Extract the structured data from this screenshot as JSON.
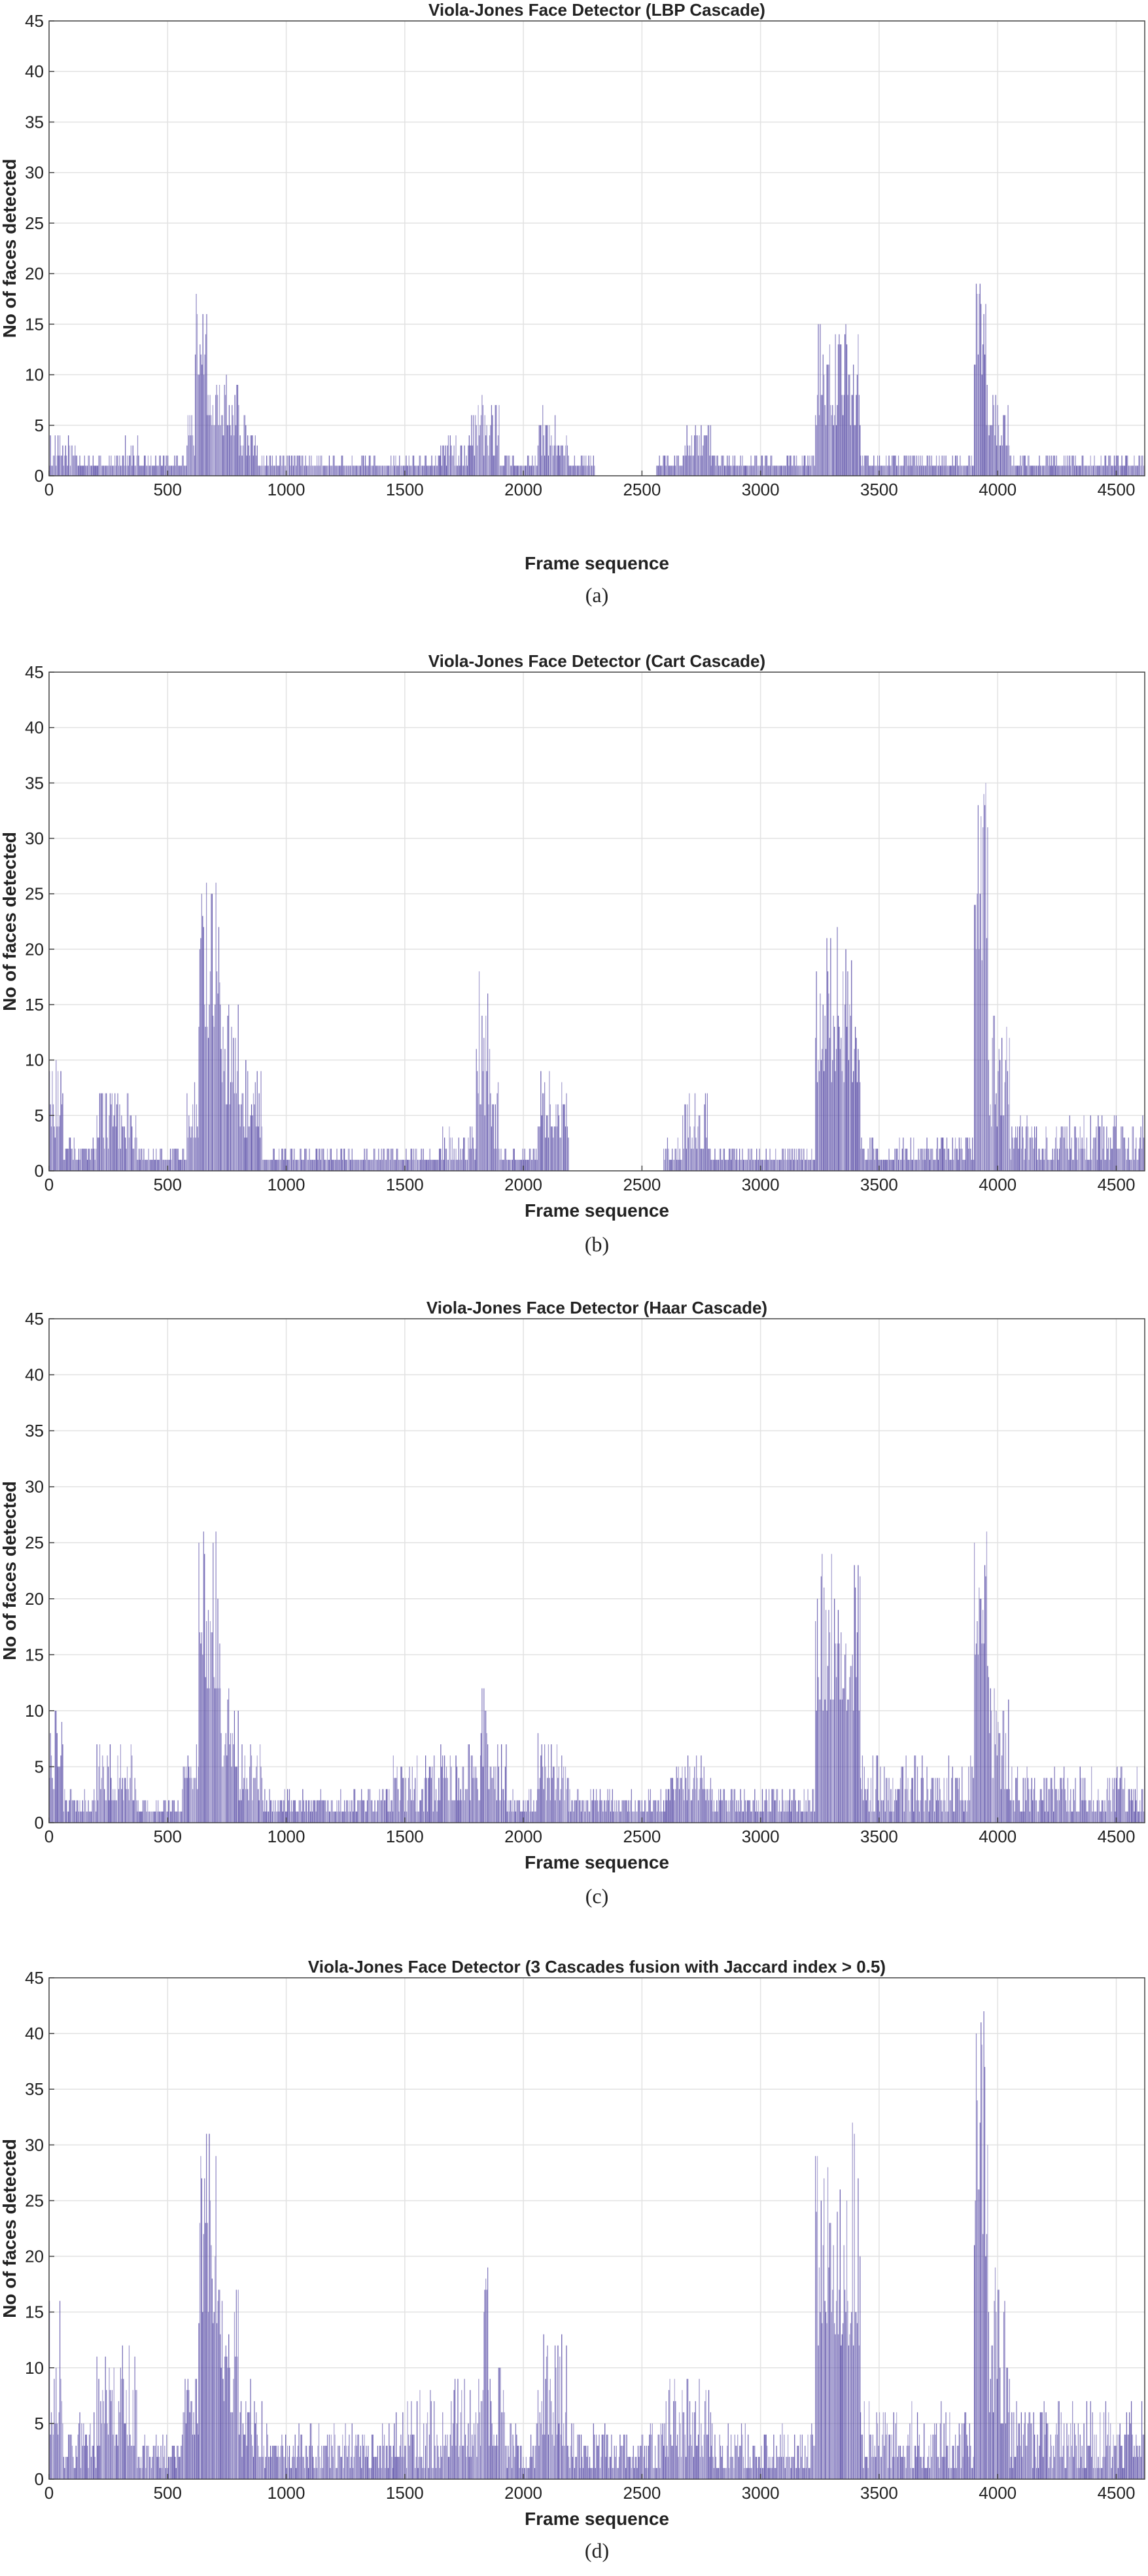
{
  "chart_data": [
    {
      "type": "bar",
      "panel": "(a)",
      "title": "Viola-Jones Face Detector (LBP Cascade)",
      "xlabel": "Frame sequence",
      "ylabel": "No of faces detected",
      "xlim": [
        0,
        4620
      ],
      "ylim": [
        0,
        45
      ],
      "xticks": [
        0,
        500,
        1000,
        1500,
        2000,
        2500,
        3000,
        3500,
        4000,
        4500
      ],
      "yticks": [
        0,
        5,
        10,
        15,
        20,
        25,
        30,
        35,
        40,
        45
      ],
      "grid": true,
      "bar_color": "#5b4fa8",
      "segments": [
        {
          "x": [
            0,
            120
          ],
          "peak": 4,
          "base": 1
        },
        {
          "x": [
            120,
            300
          ],
          "peak": 2,
          "base": 1
        },
        {
          "x": [
            300,
            380
          ],
          "peak": 4,
          "base": 1
        },
        {
          "x": [
            380,
            580
          ],
          "peak": 2,
          "base": 1
        },
        {
          "x": [
            580,
            615
          ],
          "peak": 6,
          "base": 2
        },
        {
          "x": [
            615,
            665
          ],
          "peak": 18,
          "base": 10
        },
        {
          "x": [
            665,
            730
          ],
          "peak": 9,
          "base": 5
        },
        {
          "x": [
            730,
            800
          ],
          "peak": 10,
          "base": 4
        },
        {
          "x": [
            800,
            880
          ],
          "peak": 6,
          "base": 2
        },
        {
          "x": [
            880,
            1650
          ],
          "peak": 2,
          "base": 1
        },
        {
          "x": [
            1650,
            1780
          ],
          "peak": 4,
          "base": 1
        },
        {
          "x": [
            1780,
            1900
          ],
          "peak": 8,
          "base": 2
        },
        {
          "x": [
            1900,
            2060
          ],
          "peak": 2,
          "base": 1
        },
        {
          "x": [
            2060,
            2190
          ],
          "peak": 7,
          "base": 2
        },
        {
          "x": [
            2190,
            2300
          ],
          "peak": 2,
          "base": 1
        },
        {
          "x": [
            2560,
            2680
          ],
          "peak": 2,
          "base": 1
        },
        {
          "x": [
            2680,
            2790
          ],
          "peak": 5,
          "base": 2
        },
        {
          "x": [
            2790,
            3230
          ],
          "peak": 2,
          "base": 1
        },
        {
          "x": [
            3230,
            3420
          ],
          "peak": 16,
          "base": 5
        },
        {
          "x": [
            3420,
            3900
          ],
          "peak": 2,
          "base": 1
        },
        {
          "x": [
            3900,
            3950
          ],
          "peak": 19,
          "base": 10
        },
        {
          "x": [
            3950,
            4050
          ],
          "peak": 10,
          "base": 3
        },
        {
          "x": [
            4050,
            4620
          ],
          "peak": 2,
          "base": 1
        }
      ],
      "caption": "(a)"
    },
    {
      "type": "bar",
      "panel": "(b)",
      "title": "Viola-Jones Face Detector (Cart Cascade)",
      "xlabel": "Frame sequence",
      "ylabel": "No of faces detected",
      "xlim": [
        0,
        4620
      ],
      "ylim": [
        0,
        45
      ],
      "xticks": [
        0,
        500,
        1000,
        1500,
        2000,
        2500,
        3000,
        3500,
        4000,
        4500
      ],
      "yticks": [
        0,
        5,
        10,
        15,
        20,
        25,
        30,
        35,
        40,
        45
      ],
      "grid": true,
      "bar_color": "#5b4fa8",
      "segments": [
        {
          "x": [
            0,
            60
          ],
          "peak": 10,
          "base": 3
        },
        {
          "x": [
            60,
            200
          ],
          "peak": 3,
          "base": 1
        },
        {
          "x": [
            200,
            370
          ],
          "peak": 8,
          "base": 2
        },
        {
          "x": [
            370,
            580
          ],
          "peak": 2,
          "base": 1
        },
        {
          "x": [
            580,
            630
          ],
          "peak": 8,
          "base": 3
        },
        {
          "x": [
            630,
            720
          ],
          "peak": 27,
          "base": 12
        },
        {
          "x": [
            720,
            800
          ],
          "peak": 17,
          "base": 6
        },
        {
          "x": [
            800,
            900
          ],
          "peak": 10,
          "base": 3
        },
        {
          "x": [
            900,
            1650
          ],
          "peak": 2,
          "base": 1
        },
        {
          "x": [
            1650,
            1800
          ],
          "peak": 4,
          "base": 1
        },
        {
          "x": [
            1800,
            1860
          ],
          "peak": 18,
          "base": 5
        },
        {
          "x": [
            1860,
            1900
          ],
          "peak": 9,
          "base": 2
        },
        {
          "x": [
            1900,
            2060
          ],
          "peak": 2,
          "base": 1
        },
        {
          "x": [
            2060,
            2190
          ],
          "peak": 9,
          "base": 3
        },
        {
          "x": [
            2590,
            2670
          ],
          "peak": 3,
          "base": 1
        },
        {
          "x": [
            2670,
            2790
          ],
          "peak": 7,
          "base": 2
        },
        {
          "x": [
            2790,
            3230
          ],
          "peak": 2,
          "base": 1
        },
        {
          "x": [
            3230,
            3420
          ],
          "peak": 22,
          "base": 8
        },
        {
          "x": [
            3420,
            3900
          ],
          "peak": 3,
          "base": 1
        },
        {
          "x": [
            3900,
            3960
          ],
          "peak": 37,
          "base": 18
        },
        {
          "x": [
            3960,
            4050
          ],
          "peak": 15,
          "base": 4
        },
        {
          "x": [
            4050,
            4620
          ],
          "peak": 5,
          "base": 1
        }
      ],
      "caption": "(b)"
    },
    {
      "type": "bar",
      "panel": "(c)",
      "title": "Viola-Jones Face Detector (Haar Cascade)",
      "xlabel": "Frame sequence",
      "ylabel": "No of faces detected",
      "xlim": [
        0,
        4620
      ],
      "ylim": [
        0,
        45
      ],
      "xticks": [
        0,
        500,
        1000,
        1500,
        2000,
        2500,
        3000,
        3500,
        4000,
        4500
      ],
      "yticks": [
        0,
        5,
        10,
        15,
        20,
        25,
        30,
        35,
        40,
        45
      ],
      "grid": true,
      "bar_color": "#5b4fa8",
      "segments": [
        {
          "x": [
            0,
            60
          ],
          "peak": 10,
          "base": 3
        },
        {
          "x": [
            60,
            200
          ],
          "peak": 3,
          "base": 1
        },
        {
          "x": [
            200,
            370
          ],
          "peak": 8,
          "base": 2
        },
        {
          "x": [
            370,
            560
          ],
          "peak": 2,
          "base": 1
        },
        {
          "x": [
            560,
            630
          ],
          "peak": 7,
          "base": 3
        },
        {
          "x": [
            630,
            720
          ],
          "peak": 26,
          "base": 12
        },
        {
          "x": [
            720,
            800
          ],
          "peak": 12,
          "base": 5
        },
        {
          "x": [
            800,
            900
          ],
          "peak": 7,
          "base": 2
        },
        {
          "x": [
            900,
            1450
          ],
          "peak": 3,
          "base": 1
        },
        {
          "x": [
            1450,
            1650
          ],
          "peak": 6,
          "base": 1
        },
        {
          "x": [
            1650,
            1820
          ],
          "peak": 7,
          "base": 2
        },
        {
          "x": [
            1820,
            1850
          ],
          "peak": 13,
          "base": 5
        },
        {
          "x": [
            1850,
            1930
          ],
          "peak": 8,
          "base": 2
        },
        {
          "x": [
            1930,
            2060
          ],
          "peak": 3,
          "base": 1
        },
        {
          "x": [
            2060,
            2190
          ],
          "peak": 8,
          "base": 2
        },
        {
          "x": [
            2190,
            2600
          ],
          "peak": 3,
          "base": 1
        },
        {
          "x": [
            2600,
            2790
          ],
          "peak": 6,
          "base": 2
        },
        {
          "x": [
            2790,
            3230
          ],
          "peak": 3,
          "base": 1
        },
        {
          "x": [
            3230,
            3420
          ],
          "peak": 26,
          "base": 10
        },
        {
          "x": [
            3420,
            3900
          ],
          "peak": 6,
          "base": 1
        },
        {
          "x": [
            3900,
            3960
          ],
          "peak": 26,
          "base": 14
        },
        {
          "x": [
            3960,
            4050
          ],
          "peak": 13,
          "base": 3
        },
        {
          "x": [
            4050,
            4620
          ],
          "peak": 5,
          "base": 1
        }
      ],
      "caption": "(c)"
    },
    {
      "type": "bar",
      "panel": "(d)",
      "title": "Viola-Jones Face Detector (3 Cascades fusion with Jaccard index > 0.5)",
      "xlabel": "Frame sequence",
      "ylabel": "No of faces detected",
      "xlim": [
        0,
        4620
      ],
      "ylim": [
        0,
        45
      ],
      "xticks": [
        0,
        500,
        1000,
        1500,
        2000,
        2500,
        3000,
        3500,
        4000,
        4500
      ],
      "yticks": [
        0,
        5,
        10,
        15,
        20,
        25,
        30,
        35,
        40,
        45
      ],
      "grid": true,
      "bar_color": "#5b4fa8",
      "segments": [
        {
          "x": [
            0,
            60
          ],
          "peak": 17,
          "base": 4
        },
        {
          "x": [
            60,
            200
          ],
          "peak": 6,
          "base": 1
        },
        {
          "x": [
            200,
            370
          ],
          "peak": 12,
          "base": 3
        },
        {
          "x": [
            370,
            560
          ],
          "peak": 4,
          "base": 1
        },
        {
          "x": [
            560,
            630
          ],
          "peak": 10,
          "base": 4
        },
        {
          "x": [
            630,
            720
          ],
          "peak": 31,
          "base": 14
        },
        {
          "x": [
            720,
            800
          ],
          "peak": 17,
          "base": 6
        },
        {
          "x": [
            800,
            900
          ],
          "peak": 10,
          "base": 2
        },
        {
          "x": [
            900,
            1450
          ],
          "peak": 5,
          "base": 1
        },
        {
          "x": [
            1450,
            1650
          ],
          "peak": 8,
          "base": 1
        },
        {
          "x": [
            1650,
            1820
          ],
          "peak": 10,
          "base": 2
        },
        {
          "x": [
            1820,
            1850
          ],
          "peak": 21,
          "base": 6
        },
        {
          "x": [
            1850,
            1930
          ],
          "peak": 12,
          "base": 2
        },
        {
          "x": [
            1930,
            2060
          ],
          "peak": 5,
          "base": 1
        },
        {
          "x": [
            2060,
            2190
          ],
          "peak": 13,
          "base": 3
        },
        {
          "x": [
            2190,
            2600
          ],
          "peak": 5,
          "base": 1
        },
        {
          "x": [
            2600,
            2790
          ],
          "peak": 10,
          "base": 2
        },
        {
          "x": [
            2790,
            3230
          ],
          "peak": 5,
          "base": 1
        },
        {
          "x": [
            3230,
            3420
          ],
          "peak": 33,
          "base": 12
        },
        {
          "x": [
            3420,
            3900
          ],
          "peak": 7,
          "base": 1
        },
        {
          "x": [
            3900,
            3960
          ],
          "peak": 42,
          "base": 20
        },
        {
          "x": [
            3960,
            4050
          ],
          "peak": 21,
          "base": 4
        },
        {
          "x": [
            4050,
            4620
          ],
          "peak": 7,
          "base": 1
        }
      ],
      "caption": "(d)"
    }
  ]
}
